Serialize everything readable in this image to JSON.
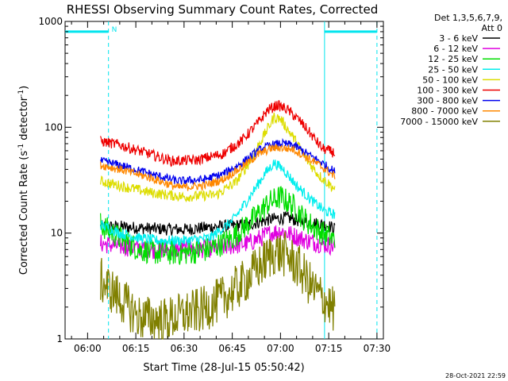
{
  "chart_data": {
    "type": "line",
    "title": "RHESSI Observing Summary Count Rates, Corrected",
    "xlabel": "Start Time (28-Jul-15 05:50:42)",
    "ylabel_main": "Corrected Count Rate (s",
    "ylabel_sup1": "-1",
    "ylabel_mid": " detector",
    "ylabel_sup2": "-1",
    "ylabel_end": ")",
    "y_scale": "log",
    "ylim": [
      1,
      1000
    ],
    "xlim_minutes": [
      -7,
      92
    ],
    "x_ticks": [
      {
        "label": "06:00",
        "minute": 0
      },
      {
        "label": "06:15",
        "minute": 15
      },
      {
        "label": "06:30",
        "minute": 30
      },
      {
        "label": "06:45",
        "minute": 45
      },
      {
        "label": "07:00",
        "minute": 60
      },
      {
        "label": "07:15",
        "minute": 75
      },
      {
        "label": "07:30",
        "minute": 90
      }
    ],
    "y_ticks": [
      {
        "label": "1",
        "value": 1
      },
      {
        "label": "10",
        "value": 10
      },
      {
        "label": "100",
        "value": 100
      },
      {
        "label": "1000",
        "value": 1000
      }
    ],
    "legend_header": [
      "Det 1,3,5,6,7,9,",
      "Att 0"
    ],
    "legend_position": "right",
    "night_flag": "N",
    "night_level": 800,
    "night_intervals": [
      {
        "start": -7,
        "end": 6.5,
        "flag_label": "N"
      },
      {
        "start": 73.7,
        "end": 90
      }
    ],
    "data_window": [
      4,
      77
    ],
    "timestamp": "28-Oct-2021 22:59",
    "series": [
      {
        "name": "3 - 6 keV",
        "color": "#000000",
        "points": [
          [
            4,
            11.5
          ],
          [
            10,
            11.5
          ],
          [
            20,
            11
          ],
          [
            30,
            10.8
          ],
          [
            40,
            11.5
          ],
          [
            50,
            12
          ],
          [
            57,
            13.5
          ],
          [
            62,
            14
          ],
          [
            66,
            13
          ],
          [
            70,
            12.5
          ],
          [
            74,
            12
          ],
          [
            77,
            11
          ]
        ],
        "noise": 0.06
      },
      {
        "name": "6 - 12 keV",
        "color": "#e000e0",
        "points": [
          [
            4,
            8
          ],
          [
            10,
            7.5
          ],
          [
            20,
            7
          ],
          [
            30,
            7
          ],
          [
            40,
            7.2
          ],
          [
            50,
            8
          ],
          [
            57,
            10
          ],
          [
            60,
            10.5
          ],
          [
            64,
            9.5
          ],
          [
            68,
            8.5
          ],
          [
            72,
            8
          ],
          [
            77,
            7.5
          ]
        ],
        "noise": 0.09
      },
      {
        "name": "12 - 25 keV",
        "color": "#00dd00",
        "points": [
          [
            4,
            12
          ],
          [
            10,
            9
          ],
          [
            16,
            7
          ],
          [
            22,
            6.5
          ],
          [
            30,
            6.5
          ],
          [
            38,
            7
          ],
          [
            45,
            9
          ],
          [
            52,
            14
          ],
          [
            56,
            19
          ],
          [
            60,
            22
          ],
          [
            64,
            18
          ],
          [
            68,
            13
          ],
          [
            72,
            10.5
          ],
          [
            77,
            8.5
          ]
        ],
        "noise": 0.12
      },
      {
        "name": "25 - 50 keV",
        "color": "#00eeee",
        "points": [
          [
            4,
            12
          ],
          [
            10,
            10
          ],
          [
            16,
            9
          ],
          [
            22,
            8.5
          ],
          [
            30,
            8.5
          ],
          [
            38,
            9
          ],
          [
            45,
            13
          ],
          [
            50,
            21
          ],
          [
            55,
            36
          ],
          [
            58,
            46
          ],
          [
            61,
            40
          ],
          [
            65,
            28
          ],
          [
            70,
            20
          ],
          [
            74,
            16
          ],
          [
            77,
            15
          ]
        ],
        "noise": 0.05
      },
      {
        "name": "50 - 100 keV",
        "color": "#dddd00",
        "points": [
          [
            4,
            31
          ],
          [
            10,
            28
          ],
          [
            20,
            24
          ],
          [
            30,
            22
          ],
          [
            40,
            23
          ],
          [
            46,
            30
          ],
          [
            50,
            45
          ],
          [
            54,
            75
          ],
          [
            58,
            125
          ],
          [
            60,
            120
          ],
          [
            64,
            80
          ],
          [
            68,
            50
          ],
          [
            72,
            35
          ],
          [
            77,
            26
          ]
        ],
        "noise": 0.05
      },
      {
        "name": "100 - 300 keV",
        "color": "#ee0000",
        "points": [
          [
            4,
            74
          ],
          [
            10,
            68
          ],
          [
            20,
            55
          ],
          [
            26,
            48
          ],
          [
            34,
            49
          ],
          [
            42,
            56
          ],
          [
            48,
            75
          ],
          [
            53,
            110
          ],
          [
            56,
            145
          ],
          [
            59,
            162
          ],
          [
            62,
            148
          ],
          [
            66,
            115
          ],
          [
            70,
            82
          ],
          [
            73,
            63
          ],
          [
            77,
            57
          ]
        ],
        "noise": 0.05
      },
      {
        "name": "300 - 800 keV",
        "color": "#0000ee",
        "points": [
          [
            4,
            48
          ],
          [
            10,
            44
          ],
          [
            20,
            36
          ],
          [
            28,
            31
          ],
          [
            36,
            32
          ],
          [
            42,
            36
          ],
          [
            48,
            46
          ],
          [
            53,
            60
          ],
          [
            57,
            68
          ],
          [
            60,
            70
          ],
          [
            64,
            68
          ],
          [
            68,
            57
          ],
          [
            72,
            48
          ],
          [
            77,
            38
          ]
        ],
        "noise": 0.04
      },
      {
        "name": "800 - 7000 keV",
        "color": "#ff8800",
        "points": [
          [
            4,
            44
          ],
          [
            10,
            40
          ],
          [
            20,
            33
          ],
          [
            28,
            27
          ],
          [
            36,
            28
          ],
          [
            42,
            32
          ],
          [
            48,
            42
          ],
          [
            53,
            55
          ],
          [
            57,
            63
          ],
          [
            60,
            64
          ],
          [
            64,
            62
          ],
          [
            68,
            52
          ],
          [
            72,
            44
          ],
          [
            77,
            34
          ]
        ],
        "noise": 0.04
      },
      {
        "name": "7000 - 15000 keV",
        "color": "#808000",
        "points": [
          [
            4,
            3.6
          ],
          [
            10,
            2.4
          ],
          [
            16,
            1.6
          ],
          [
            24,
            1.5
          ],
          [
            30,
            1.7
          ],
          [
            36,
            1.9
          ],
          [
            42,
            2.4
          ],
          [
            48,
            3.3
          ],
          [
            54,
            5
          ],
          [
            58,
            6.6
          ],
          [
            62,
            6.2
          ],
          [
            66,
            4.6
          ],
          [
            70,
            3
          ],
          [
            74,
            2.3
          ],
          [
            77,
            1.8
          ]
        ],
        "noise": 0.22
      }
    ]
  }
}
